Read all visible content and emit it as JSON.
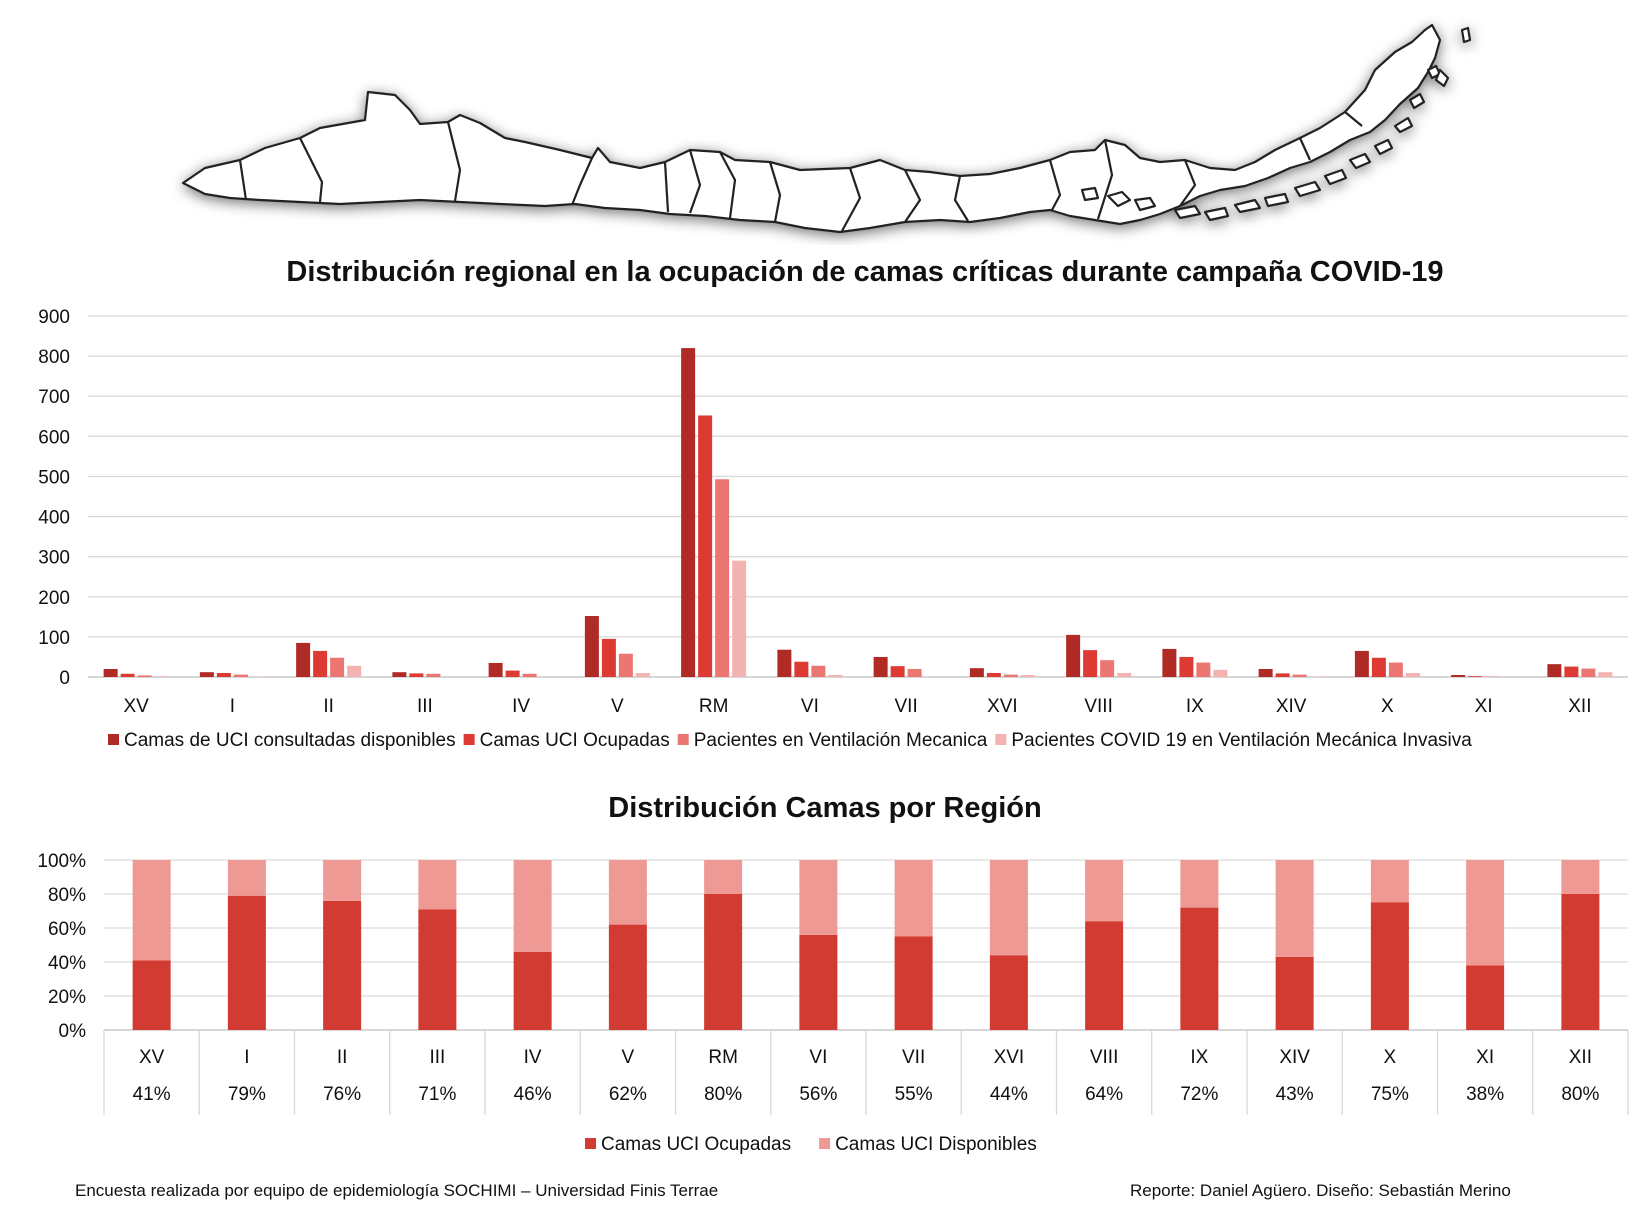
{
  "colors": {
    "dark_red": "#b02a26",
    "red": "#dc3a32",
    "salmon": "#ec7672",
    "pink": "#f3b3b0",
    "occupied": "#d13b31",
    "available": "#ef9994",
    "grid": "#d9d9d9",
    "axis": "#bfbfbf"
  },
  "footer": {
    "left": "Encuesta realizada por equipo de epidemiología SOCHIMI – Universidad Finis Terrae",
    "right": "Reporte: Daniel Agüero. Diseño: Sebastián Merino"
  },
  "chart_data": [
    {
      "type": "bar",
      "title": "Distribución regional en la ocupación de camas críticas durante campaña COVID-19",
      "categories": [
        "XV",
        "I",
        "II",
        "III",
        "IV",
        "V",
        "RM",
        "VI",
        "VII",
        "XVI",
        "VIII",
        "IX",
        "XIV",
        "X",
        "XI",
        "XII"
      ],
      "ylim": [
        0,
        900
      ],
      "yticks": [
        0,
        100,
        200,
        300,
        400,
        500,
        600,
        700,
        800,
        900
      ],
      "grid": true,
      "legend_position": "bottom",
      "series": [
        {
          "name": "Camas de UCI consultadas disponibles",
          "color": "#b02a26",
          "values": [
            20,
            12,
            85,
            12,
            35,
            152,
            820,
            68,
            50,
            22,
            105,
            70,
            20,
            65,
            5,
            32
          ]
        },
        {
          "name": "Camas UCI Ocupadas",
          "color": "#dc3a32",
          "values": [
            8,
            10,
            65,
            9,
            16,
            95,
            652,
            38,
            27,
            10,
            67,
            50,
            9,
            48,
            2,
            26
          ]
        },
        {
          "name": "Pacientes en Ventilación Mecanica",
          "color": "#ec7672",
          "values": [
            4,
            6,
            48,
            8,
            8,
            58,
            493,
            28,
            20,
            6,
            42,
            36,
            6,
            36,
            1,
            21
          ]
        },
        {
          "name": "Pacientes COVID 19 en Ventilación Mecánica Invasiva",
          "color": "#f3b3b0",
          "values": [
            2,
            1,
            28,
            0,
            0,
            10,
            290,
            5,
            0,
            5,
            10,
            18,
            1,
            10,
            0,
            12
          ]
        }
      ]
    },
    {
      "type": "bar",
      "stacked": true,
      "title": "Distribución Camas por Región",
      "categories": [
        "XV",
        "I",
        "II",
        "III",
        "IV",
        "V",
        "RM",
        "VI",
        "VII",
        "XVI",
        "VIII",
        "IX",
        "XIV",
        "X",
        "XI",
        "XII"
      ],
      "yticks": [
        "0%",
        "20%",
        "40%",
        "60%",
        "80%",
        "100%"
      ],
      "ylim": [
        0,
        100
      ],
      "grid": true,
      "legend_position": "bottom",
      "table_labels": [
        "41%",
        "79%",
        "76%",
        "71%",
        "46%",
        "62%",
        "80%",
        "56%",
        "55%",
        "44%",
        "64%",
        "72%",
        "43%",
        "75%",
        "38%",
        "80%"
      ],
      "series": [
        {
          "name": "Camas UCI Ocupadas",
          "color": "#d13b31",
          "values": [
            41,
            79,
            76,
            71,
            46,
            62,
            80,
            56,
            55,
            44,
            64,
            72,
            43,
            75,
            38,
            80
          ]
        },
        {
          "name": "Camas UCI Disponibles",
          "color": "#ef9994",
          "values": [
            59,
            21,
            24,
            29,
            54,
            38,
            20,
            44,
            45,
            56,
            36,
            28,
            57,
            25,
            62,
            20
          ]
        }
      ]
    }
  ]
}
